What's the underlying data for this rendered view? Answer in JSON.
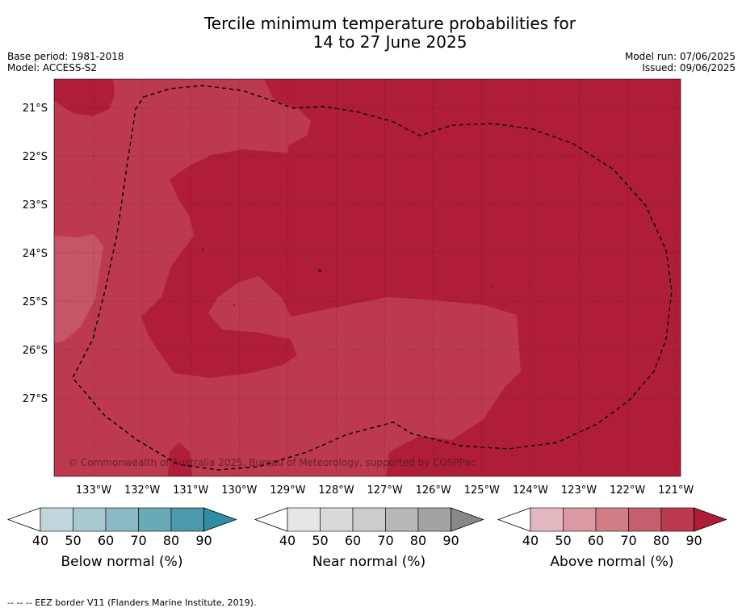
{
  "title_line1": "Tercile minimum temperature probabilities for",
  "title_line2": "14 to 27 June 2025",
  "base_period": "Base period: 1981-2018",
  "model": "Model: ACCESS-S2",
  "model_run": "Model run: 07/06/2025",
  "issued": "Issued: 09/06/2025",
  "copyright": "© Commonwealth of Australia 2025, Bureau of Meteorology, supported by COSPPac",
  "lat_labels": [
    "21°S",
    "22°S",
    "23°S",
    "24°S",
    "25°S",
    "26°S",
    "27°S"
  ],
  "lon_labels": [
    "133°W",
    "132°W",
    "131°W",
    "130°W",
    "129°W",
    "128°W",
    "127°W",
    "126°W",
    "125°W",
    "124°W",
    "123°W",
    "122°W",
    "121°W"
  ],
  "colorbars": [
    {
      "label": "Below normal (%)",
      "ticks": [
        "40",
        "50",
        "60",
        "70",
        "80",
        "90"
      ],
      "colors": [
        "#ffffff",
        "#c0d6dc",
        "#a9c9d0",
        "#8bb9c4",
        "#6aa9b6",
        "#4a9aab",
        "#2f8ea1"
      ]
    },
    {
      "label": "Near normal (%)",
      "ticks": [
        "40",
        "50",
        "60",
        "70",
        "80",
        "90"
      ],
      "colors": [
        "#ffffff",
        "#e6e6e6",
        "#d9d9d9",
        "#cccccc",
        "#b8b8b8",
        "#a3a3a3",
        "#888888"
      ]
    },
    {
      "label": "Above normal (%)",
      "ticks": [
        "40",
        "50",
        "60",
        "70",
        "80",
        "90"
      ],
      "colors": [
        "#ffffff",
        "#e3b8bf",
        "#da9aa4",
        "#d07d88",
        "#c65f6d",
        "#bc3a4e",
        "#af1c37"
      ]
    }
  ],
  "map_colors": {
    "above_80_90": "#b01d38",
    "above_70_80": "#bd3a4e",
    "above_60_70": "#c65566"
  },
  "footer": "--  --  -- EEZ border V11 (Flanders Marine Institute, 2019)."
}
